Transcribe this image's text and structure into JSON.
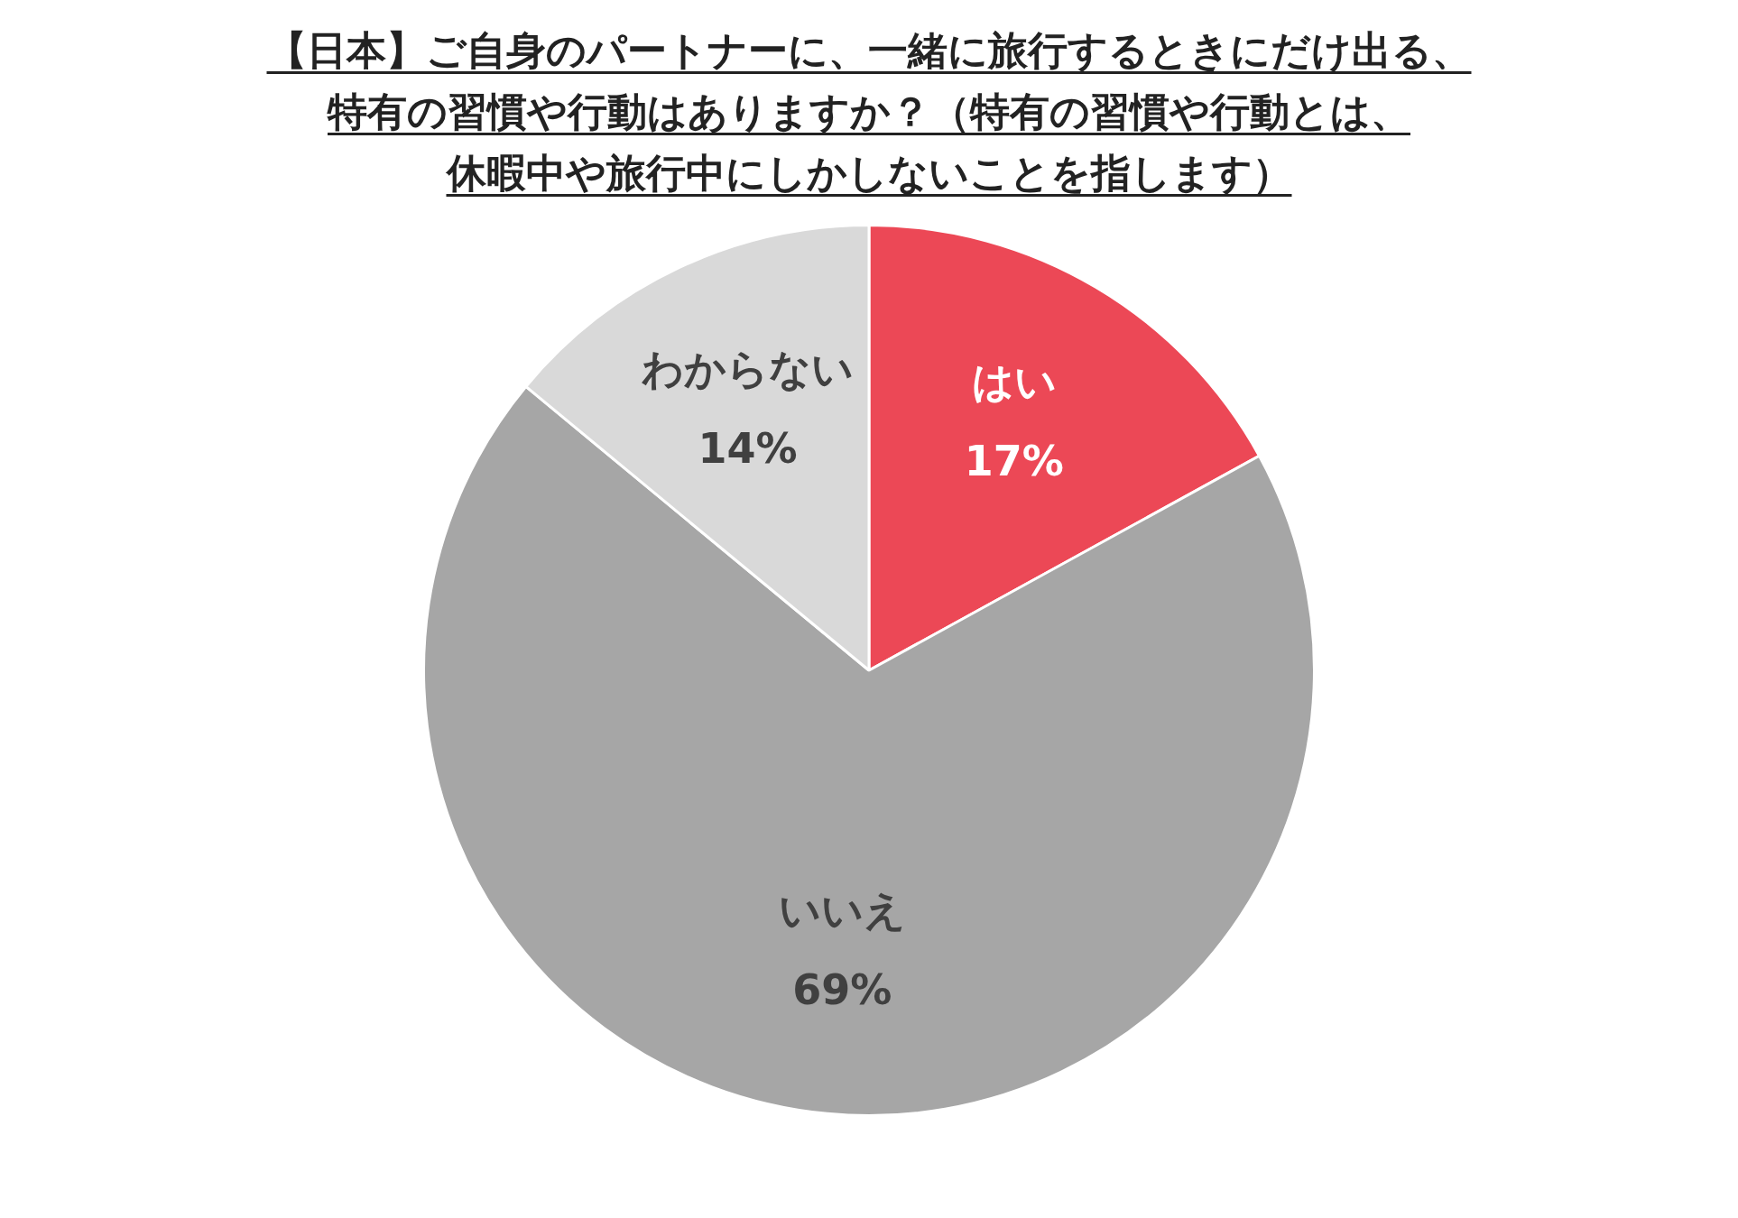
{
  "chart_data": {
    "type": "pie",
    "title": "【日本】ご自身のパートナーに、一緒に旅行するときにだけ出る、特有の習慣や行動はありますか？（特有の習慣や行動とは、休暇中や旅行中にしかしないことを指します）",
    "categories": [
      "はい",
      "いいえ",
      "わからない"
    ],
    "values": [
      17,
      69,
      14
    ],
    "value_labels": [
      "17%",
      "69%",
      "14%"
    ],
    "colors": [
      "#ec4856",
      "#a6a6a6",
      "#d9d9d9"
    ],
    "legend": false
  }
}
